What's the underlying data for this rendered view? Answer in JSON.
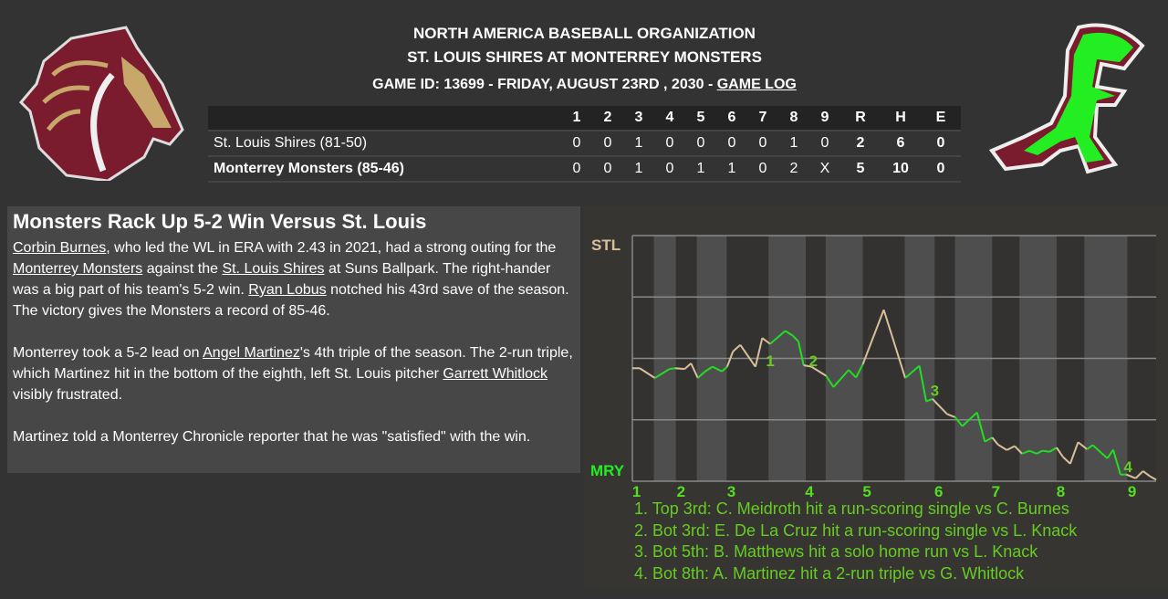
{
  "header": {
    "league": "NORTH AMERICA BASEBALL ORGANIZATION",
    "matchup": "ST. LOUIS SHIRES AT MONTERREY MONSTERS",
    "game_info": "GAME ID: 13699 - FRIDAY, AUGUST 23RD , 2030 - ",
    "game_log_link": "GAME LOG"
  },
  "logos": {
    "away": "St. Louis Shires horse-head logo",
    "home": "Monterrey Monsters dinosaur logo"
  },
  "scoreboard": {
    "columns": [
      "1",
      "2",
      "3",
      "4",
      "5",
      "6",
      "7",
      "8",
      "9",
      "R",
      "H",
      "E"
    ],
    "rows": [
      {
        "team": "St. Louis Shires (81-50)",
        "innings": [
          "0",
          "0",
          "1",
          "0",
          "0",
          "0",
          "0",
          "1",
          "0"
        ],
        "R": "2",
        "H": "6",
        "E": "0"
      },
      {
        "team": "Monterrey Monsters (85-46)",
        "innings": [
          "0",
          "0",
          "1",
          "0",
          "1",
          "1",
          "0",
          "2",
          "X"
        ],
        "R": "5",
        "H": "10",
        "E": "0"
      }
    ]
  },
  "article": {
    "headline": "Monsters Rack Up 5-2 Win Versus St. Louis",
    "p1": [
      {
        "t": "Corbin Burnes",
        "link": true
      },
      {
        "t": ", who led the WL in ERA with 2.43 in 2021, had a strong outing for the "
      },
      {
        "t": "Monterrey Monsters",
        "link": true
      },
      {
        "t": " against the "
      },
      {
        "t": "St. Louis Shires",
        "link": true
      },
      {
        "t": " at Suns Ballpark. The right-hander was a big part of his team's 5-2 win. "
      },
      {
        "t": "Ryan Lobus",
        "link": true
      },
      {
        "t": " notched his 43rd save of the season. The victory gives the Monsters a record of 85-46."
      }
    ],
    "p2": [
      {
        "t": "Monterrey took a 5-2 lead on "
      },
      {
        "t": "Angel Martinez",
        "link": true
      },
      {
        "t": "'s 4th triple of the season. The 2-run triple, which Martinez hit in the bottom of the eighth, left St. Louis pitcher "
      },
      {
        "t": "Garrett Whitlock",
        "link": true
      },
      {
        "t": " visibly frustrated."
      }
    ],
    "p3": [
      {
        "t": "Martinez told a Monterrey Chronicle reporter that he was \"satisfied\" with the win."
      }
    ]
  },
  "chart_data": {
    "type": "line",
    "top_label": "STL",
    "bottom_label": "MRY",
    "ylim": [
      0,
      1
    ],
    "xlim": [
      0,
      100
    ],
    "grid": true,
    "colors": {
      "away": "#d8c09a",
      "home": "#22dd22",
      "top_label": "#d8c09a",
      "bottom_label": "#22ee22"
    },
    "inning_labels": [
      {
        "t": "1",
        "x": 0.8
      },
      {
        "t": "2",
        "x": 9.3
      },
      {
        "t": "3",
        "x": 18.9
      },
      {
        "t": "4",
        "x": 33.8
      },
      {
        "t": "5",
        "x": 44.8
      },
      {
        "t": "6",
        "x": 58.5
      },
      {
        "t": "7",
        "x": 69.4
      },
      {
        "t": "8",
        "x": 81.8
      },
      {
        "t": "9",
        "x": 95.4
      }
    ],
    "bottom_half_bands": [
      [
        4.1,
        8.3
      ],
      [
        12.3,
        18.0
      ],
      [
        26.0,
        33.1
      ],
      [
        36.9,
        44.0
      ],
      [
        52.0,
        57.7
      ],
      [
        61.6,
        68.7
      ],
      [
        73.9,
        81.0
      ],
      [
        86.3,
        94.5
      ]
    ],
    "points": [
      [
        0,
        0.46
      ],
      [
        1.4,
        0.46
      ],
      [
        4.3,
        0.42
      ],
      [
        7.1,
        0.457
      ],
      [
        8.2,
        0.46
      ],
      [
        10.0,
        0.457
      ],
      [
        11.2,
        0.48
      ],
      [
        12.5,
        0.42
      ],
      [
        13.9,
        0.447
      ],
      [
        15.3,
        0.466
      ],
      [
        17.1,
        0.447
      ],
      [
        18.1,
        0.466
      ],
      [
        19.2,
        0.528
      ],
      [
        20.6,
        0.555
      ],
      [
        23.5,
        0.466
      ],
      [
        24.8,
        0.583
      ],
      [
        26.3,
        0.559
      ],
      [
        29.2,
        0.612
      ],
      [
        30.6,
        0.593
      ],
      [
        31.7,
        0.569
      ],
      [
        32.7,
        0.472
      ],
      [
        34.2,
        0.466
      ],
      [
        37.0,
        0.429
      ],
      [
        38.4,
        0.383
      ],
      [
        41.3,
        0.453
      ],
      [
        42.7,
        0.422
      ],
      [
        44.0,
        0.476
      ],
      [
        48.0,
        0.698
      ],
      [
        52.1,
        0.42
      ],
      [
        54.8,
        0.47
      ],
      [
        56.1,
        0.325
      ],
      [
        57.3,
        0.335
      ],
      [
        60.1,
        0.273
      ],
      [
        61.6,
        0.261
      ],
      [
        63.0,
        0.224
      ],
      [
        65.8,
        0.28
      ],
      [
        67.3,
        0.161
      ],
      [
        68.7,
        0.178
      ],
      [
        69.8,
        0.149
      ],
      [
        71.5,
        0.127
      ],
      [
        73.0,
        0.143
      ],
      [
        74.4,
        0.112
      ],
      [
        75.8,
        0.124
      ],
      [
        77.2,
        0.112
      ],
      [
        78.3,
        0.124
      ],
      [
        79.7,
        0.12
      ],
      [
        81.0,
        0.137
      ],
      [
        82.2,
        0.099
      ],
      [
        83.6,
        0.071
      ],
      [
        85.1,
        0.159
      ],
      [
        86.8,
        0.13
      ],
      [
        87.9,
        0.147
      ],
      [
        90.7,
        0.093
      ],
      [
        91.8,
        0.128
      ],
      [
        93.2,
        0.027
      ],
      [
        94.3,
        0.027
      ],
      [
        96.1,
        0.012
      ],
      [
        97.5,
        0.041
      ],
      [
        98.9,
        0.019
      ],
      [
        100,
        0.006
      ]
    ],
    "markers": [
      {
        "t": "1",
        "x": 25.5,
        "y": 0.49
      },
      {
        "t": "2",
        "x": 33.7,
        "y": 0.49
      },
      {
        "t": "3",
        "x": 56.9,
        "y": 0.37
      },
      {
        "t": "4",
        "x": 93.8,
        "y": 0.06
      }
    ],
    "notes": [
      "1. Top 3rd: C. Meidroth hit a run-scoring single vs C. Burnes",
      "2. Bot 3rd: E. De La Cruz hit a run-scoring single vs L. Knack",
      "3. Bot 5th: B. Matthews hit a solo home run vs L. Knack",
      "4. Bot 8th: A. Martinez hit a 2-run triple vs G. Whitlock"
    ]
  }
}
